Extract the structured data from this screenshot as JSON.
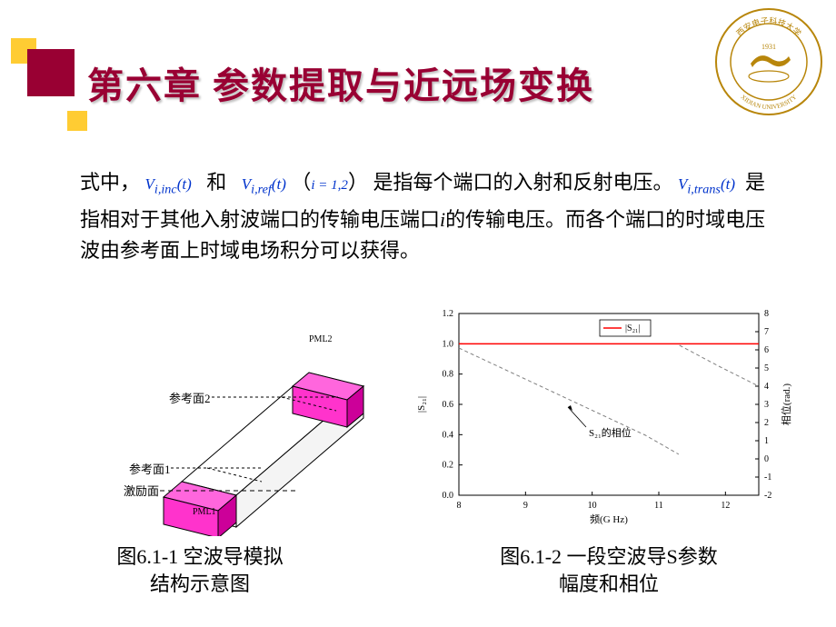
{
  "title": "第六章 参数提取与近远场变换",
  "para": {
    "t1": "式中，",
    "v1": "V",
    "v1sub": "i,inc",
    "v1arg": "(t)",
    "t2": "和",
    "v2": "V",
    "v2sub": "i,ref",
    "v2arg": "(t)",
    "lpar": "（",
    "ieq": "i = 1,2",
    "rpar": "）",
    "t3": "是指每个端口的入射和反射电压。",
    "v3": "V",
    "v3sub": "i,trans",
    "v3arg": "(t)",
    "t4": "是指相对于其他入射波端口的传输电压端口",
    "ivar": "i",
    "t5": "的传输电压。而各个端口的时域电压波由参考面上时域电场积分可以获得。"
  },
  "diagram": {
    "pml2": "PML2",
    "pml1": "PML1",
    "ref2": "参考面2",
    "ref1": "参考面1",
    "exc": "激励面",
    "box_colors": {
      "face": "#ff33cc",
      "side": "#cc0099",
      "top": "#ff66dd",
      "white": "#ffffff",
      "stroke": "#000000"
    }
  },
  "chart": {
    "type": "line",
    "xlabel": "频(G Hz)",
    "ylabel_left": "|S₂₁|",
    "ylabel_right": "相位(rad.)",
    "legend": "|S₂₁|",
    "annot": "S₂₁的相位",
    "xlim": [
      8,
      12.5
    ],
    "xticks": [
      8,
      9,
      10,
      11,
      12
    ],
    "ylim_left": [
      0.0,
      1.2
    ],
    "yticks_left": [
      0.0,
      0.2,
      0.4,
      0.6,
      0.8,
      1.0,
      1.2
    ],
    "ylim_right": [
      -2,
      8
    ],
    "yticks_right": [
      -2,
      -1,
      0,
      1,
      2,
      3,
      4,
      5,
      6,
      7,
      8
    ],
    "mag_line": {
      "color": "#ff0000",
      "width": 1.5,
      "data": [
        [
          8,
          1.0
        ],
        [
          9,
          1.0
        ],
        [
          10,
          1.0
        ],
        [
          11,
          1.0
        ],
        [
          12,
          1.0
        ],
        [
          12.5,
          1.0
        ]
      ]
    },
    "phase_line": {
      "color": "#808080",
      "dash": "4 3",
      "width": 1,
      "data": [
        [
          8.0,
          6.1
        ],
        [
          8.7,
          4.9
        ],
        [
          9.4,
          3.7
        ],
        [
          10.1,
          2.5
        ],
        [
          10.8,
          1.3
        ],
        [
          11.3,
          0.25
        ],
        [
          11.31,
          6.25
        ],
        [
          11.9,
          5.1
        ],
        [
          12.5,
          4.0
        ]
      ]
    },
    "grid_color": "#e8e8e8",
    "axis_color": "#000000",
    "background": "#ffffff",
    "label_fontsize": 11,
    "tick_fontsize": 10
  },
  "captions": {
    "left1": "图6.1-1 空波导模拟",
    "left2": "结构示意图",
    "right1": "图6.1-2 一段空波导S参数",
    "right2": "幅度和相位"
  },
  "seal": {
    "outer": "#b8860b",
    "inner": "#cd9b3a",
    "text_top": "西安电子科技大学",
    "text_bottom": "XIDIAN UNIVERSITY",
    "year": "1931"
  },
  "decor_colors": {
    "red": "#990033",
    "yellow": "#ffcc33"
  }
}
